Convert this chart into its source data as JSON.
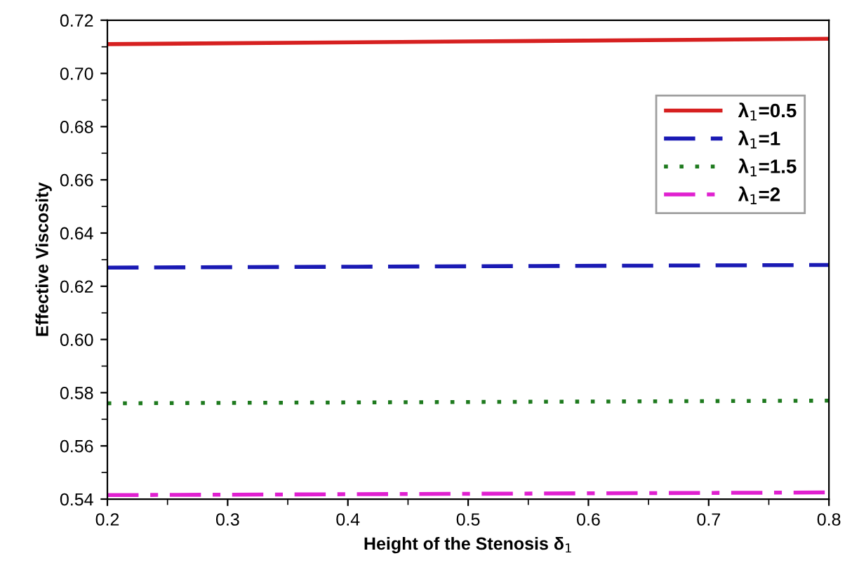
{
  "chart_data": {
    "type": "line",
    "xlabel": "Height of the Stenosis δ$_{1}$",
    "ylabel": "Effective Viscosity",
    "x": [
      0.2,
      0.5,
      0.8
    ],
    "series": [
      {
        "name": "λ$_{1}$=0.5",
        "color": "#d62020",
        "values": [
          0.711,
          0.712,
          0.713
        ],
        "line_style": "solid"
      },
      {
        "name": "λ$_{1}$=1",
        "color": "#1a1ab4",
        "values": [
          0.627,
          0.6275,
          0.628
        ],
        "line_style": "dashed"
      },
      {
        "name": "λ$_{1}$=1.5",
        "color": "#1e7a1e",
        "values": [
          0.576,
          0.5765,
          0.577
        ],
        "line_style": "dotted"
      },
      {
        "name": "λ$_{1}$=2",
        "color": "#e020d0",
        "values": [
          0.5415,
          0.542,
          0.5425
        ],
        "line_style": "dashdot"
      }
    ],
    "xlim": [
      0.2,
      0.8
    ],
    "xticks": [
      0.2,
      0.3,
      0.4,
      0.5,
      0.6,
      0.7,
      0.8
    ],
    "ylim": [
      0.54,
      0.72
    ],
    "yticks": [
      0.54,
      0.56,
      0.58,
      {
        "value": 0.6,
        "label": "0.60"
      },
      0.62,
      0.64,
      0.66,
      0.68,
      {
        "value": 0.7,
        "label": "0.70"
      },
      0.72
    ],
    "grid": false,
    "legend": "right",
    "marker": "none"
  }
}
